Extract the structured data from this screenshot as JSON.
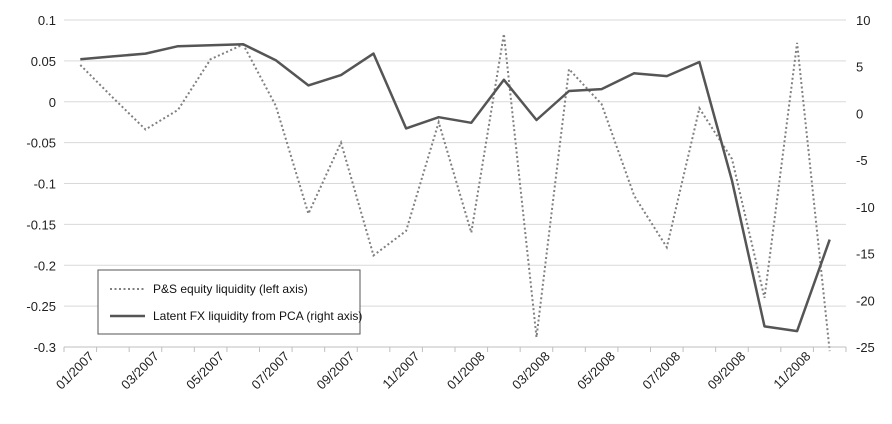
{
  "chart_data": {
    "type": "line",
    "categories": [
      "01/2007",
      "02/2007",
      "03/2007",
      "04/2007",
      "05/2007",
      "06/2007",
      "07/2007",
      "08/2007",
      "09/2007",
      "10/2007",
      "11/2007",
      "12/2007",
      "01/2008",
      "02/2008",
      "03/2008",
      "04/2008",
      "05/2008",
      "06/2008",
      "07/2008",
      "08/2008",
      "09/2008",
      "10/2008",
      "11/2008",
      "12/2008"
    ],
    "x_tick_labels": [
      "01/2007",
      "03/2007",
      "05/2007",
      "07/2007",
      "09/2007",
      "11/2007",
      "01/2008",
      "03/2008",
      "05/2008",
      "07/2008",
      "09/2008",
      "11/2008"
    ],
    "left_axis": {
      "ylim": [
        -0.3,
        0.1
      ],
      "ticks": [
        "0.1",
        "0.05",
        "0",
        "-0.05",
        "-0.1",
        "-0.15",
        "-0.2",
        "-0.25",
        "-0.3"
      ]
    },
    "right_axis": {
      "ylim": [
        -25,
        10
      ],
      "ticks": [
        "10",
        "5",
        "0",
        "-5",
        "-10",
        "-15",
        "-20",
        "-25"
      ]
    },
    "series": [
      {
        "name": "P&S equity liquidity (left axis)",
        "axis": "left",
        "style": "dotted",
        "color": "#808080",
        "values": [
          0.045,
          0.005,
          -0.034,
          -0.01,
          0.052,
          0.07,
          -0.005,
          -0.137,
          -0.05,
          -0.188,
          -0.158,
          -0.025,
          -0.16,
          0.083,
          -0.288,
          0.04,
          -0.003,
          -0.115,
          -0.178,
          -0.008,
          -0.07,
          -0.24,
          0.072,
          -0.305
        ]
      },
      {
        "name": "Latent FX liquidity from PCA (right axis)",
        "axis": "right",
        "style": "solid",
        "color": "#555555",
        "values": [
          5.8,
          6.1,
          6.4,
          7.2,
          7.3,
          7.4,
          5.7,
          3.0,
          4.1,
          6.4,
          -1.6,
          -0.4,
          -1.0,
          3.6,
          -0.7,
          2.4,
          2.6,
          4.3,
          4.0,
          5.5,
          -7.2,
          -22.8,
          -23.3,
          -13.5
        ]
      }
    ],
    "grid": "horizontal",
    "legend_placement": "bottom-left"
  }
}
